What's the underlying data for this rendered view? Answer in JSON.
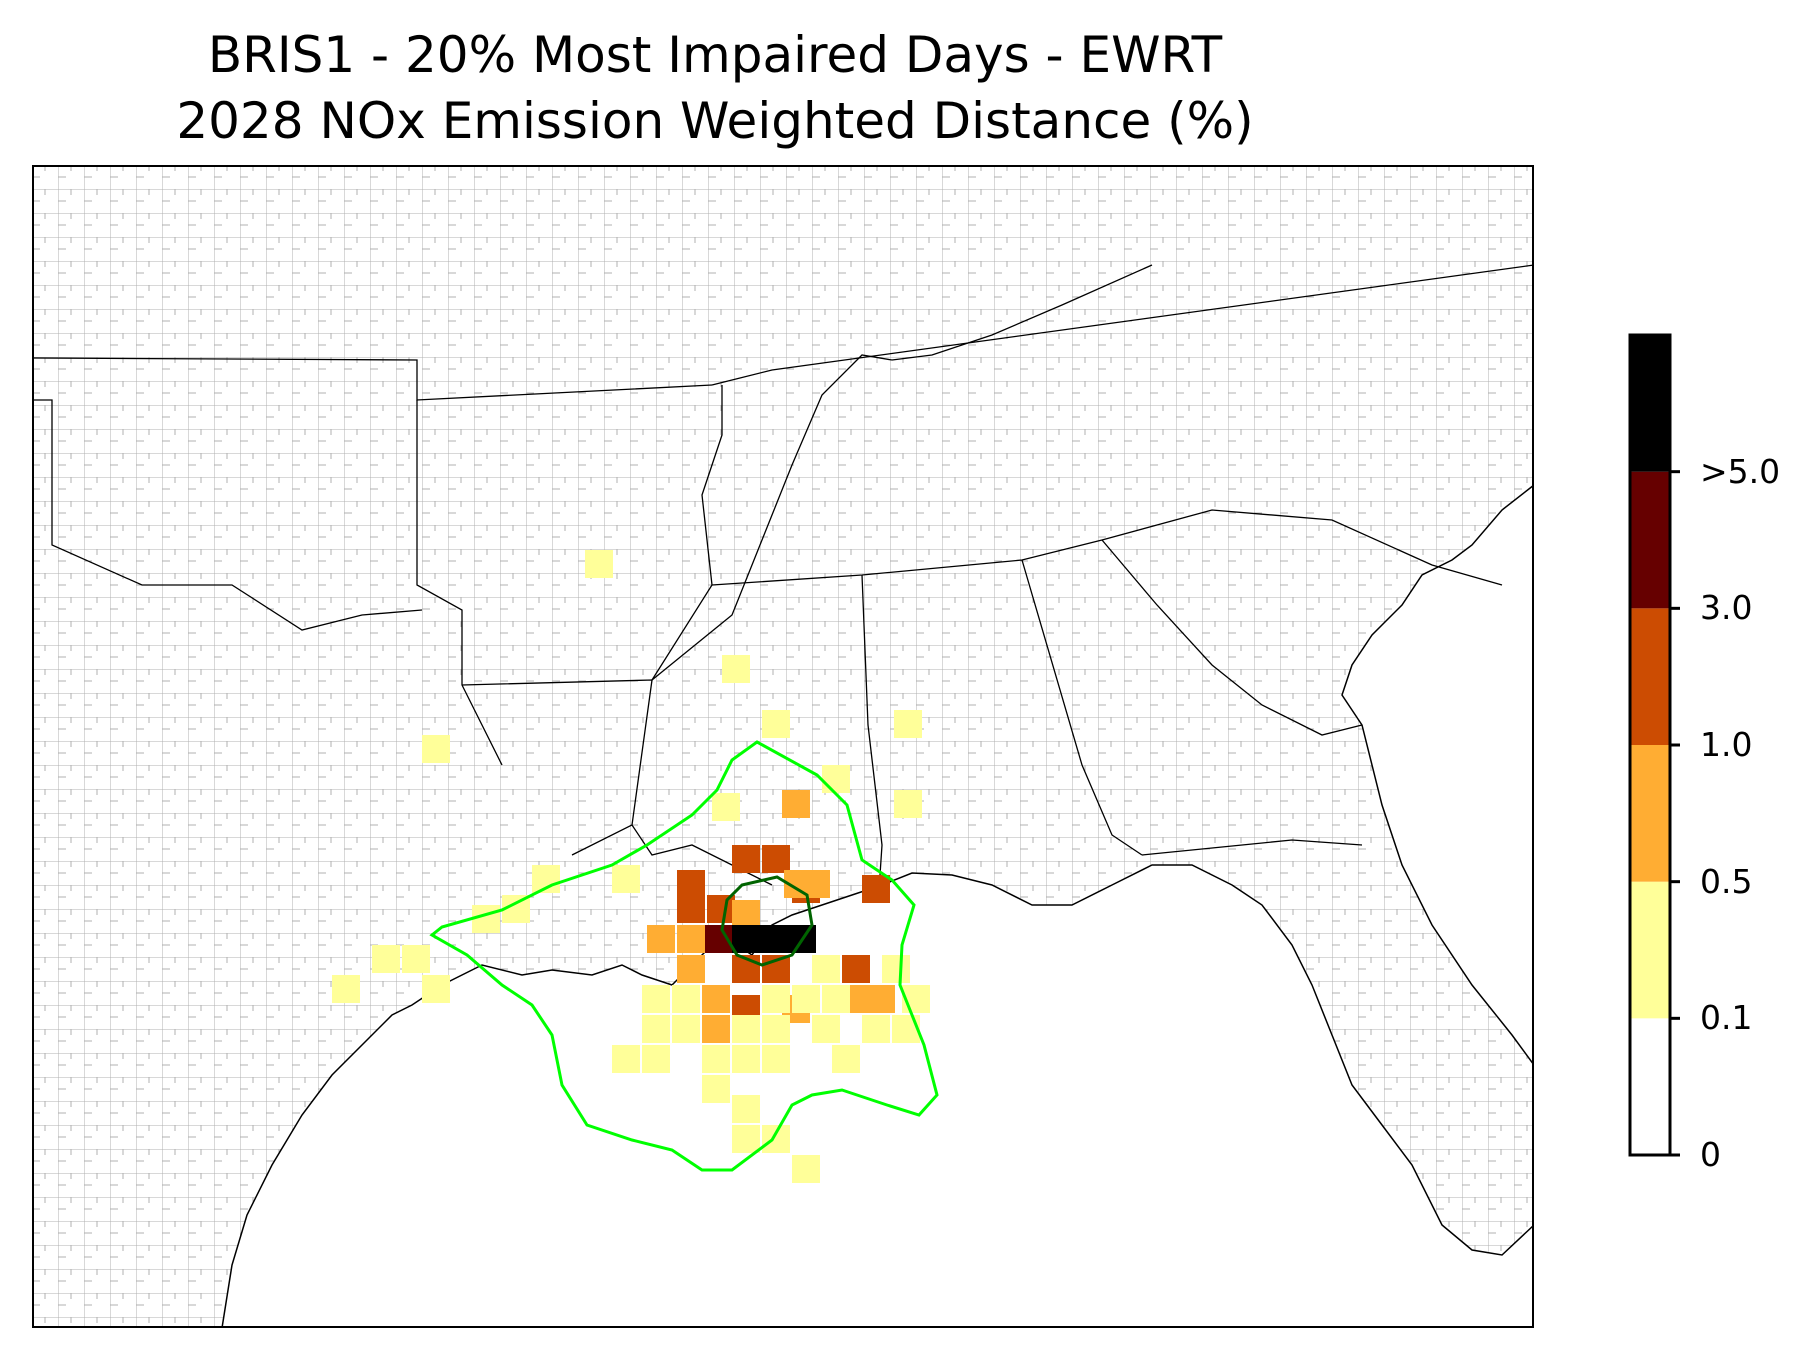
{
  "title": {
    "line1": "BRIS1 - 20% Most Impaired Days - EWRT",
    "line2": "2028 NOx Emission Weighted Distance (%)"
  },
  "colorbar": {
    "levels": [
      {
        "min": 0,
        "max": 0.1,
        "color": "#ffffff"
      },
      {
        "min": 0.1,
        "max": 0.5,
        "color": "#ffff99"
      },
      {
        "min": 0.5,
        "max": 1.0,
        "color": "#ffad33"
      },
      {
        "min": 1.0,
        "max": 3.0,
        "color": "#cc4c02"
      },
      {
        "min": 3.0,
        "max": 5.0,
        "color": "#660000"
      },
      {
        "min": 5.0,
        "max": null,
        "color": "#000000"
      }
    ],
    "tick_labels": [
      "0",
      "0.1",
      "0.5",
      "1.0",
      "3.0",
      ">5.0"
    ]
  },
  "map": {
    "region": "Southeastern United States and Gulf of Mexico",
    "features": [
      "state-boundaries",
      "county-boundaries",
      "coastline"
    ],
    "contours": [
      {
        "name": "outer-contour",
        "color": "#00ff00"
      },
      {
        "name": "inner-contour",
        "color": "#006400"
      }
    ]
  }
}
